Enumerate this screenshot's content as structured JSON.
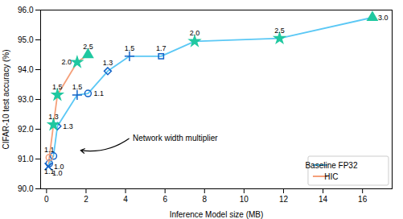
{
  "chart_data": {
    "type": "line",
    "xlabel": "Inference Model size (MB)",
    "ylabel": "CIFAR-10 test accuracy (%)",
    "xlim": [
      -0.3,
      17.5
    ],
    "ylim": [
      90,
      96
    ],
    "xticks": [
      0,
      2,
      4,
      6,
      8,
      10,
      12,
      14,
      16
    ],
    "yticks": [
      90,
      91,
      92,
      93,
      94,
      95,
      96
    ],
    "grid": false,
    "legend": "lower right",
    "series": [
      {
        "name": "Baseline FP32",
        "color": "#5bc8f5",
        "x": [
          0.09,
          0.14,
          0.35,
          0.55,
          1.55,
          2.1,
          3.1,
          4.2,
          5.8,
          7.5,
          11.8,
          16.5
        ],
        "values": [
          90.75,
          90.85,
          91.1,
          92.1,
          93.15,
          93.2,
          93.95,
          94.45,
          94.45,
          94.95,
          95.05,
          95.75
        ],
        "markers": [
          "x",
          "circle",
          "circle",
          "diamond",
          "plus",
          "circle",
          "diamond",
          "plus",
          "square",
          "star",
          "star",
          "triangle"
        ],
        "colors": [
          "#1464c8",
          "#1464c8",
          "#1464c8",
          "#1464c8",
          "#1464c8",
          "#1464c8",
          "#1464c8",
          "#1464c8",
          "#1464c8",
          "#20c8a0",
          "#20c8a0",
          "#20c8a0"
        ],
        "point_labels": [
          "1.0",
          "1.1",
          null,
          "1.3",
          "1.5",
          "1.1",
          "1.3",
          "1.5",
          "1.7",
          "2.0",
          "2.5",
          "3.0"
        ]
      },
      {
        "name": "HIC",
        "color": "#f5a07a",
        "x": [
          0.09,
          0.14,
          0.35,
          0.55,
          1.55,
          2.1
        ],
        "values": [
          90.75,
          91.05,
          92.15,
          93.15,
          94.25,
          94.5
        ],
        "markers": [
          "x",
          "circle",
          "star",
          "star",
          "star",
          "triangle"
        ],
        "colors": [
          "#1464c8",
          "#f5a07a",
          "#20c8a0",
          "#20c8a0",
          "#20c8a0",
          "#20c8a0"
        ],
        "point_labels": [
          "1.0",
          "1.1",
          "1.3",
          "1.5",
          "2.0",
          "2.5"
        ]
      }
    ],
    "annotations": [
      {
        "text": "Network width multiplier",
        "x": 1.6,
        "y": 91.3,
        "text_x": 4.2,
        "text_y": 91.7
      }
    ]
  }
}
